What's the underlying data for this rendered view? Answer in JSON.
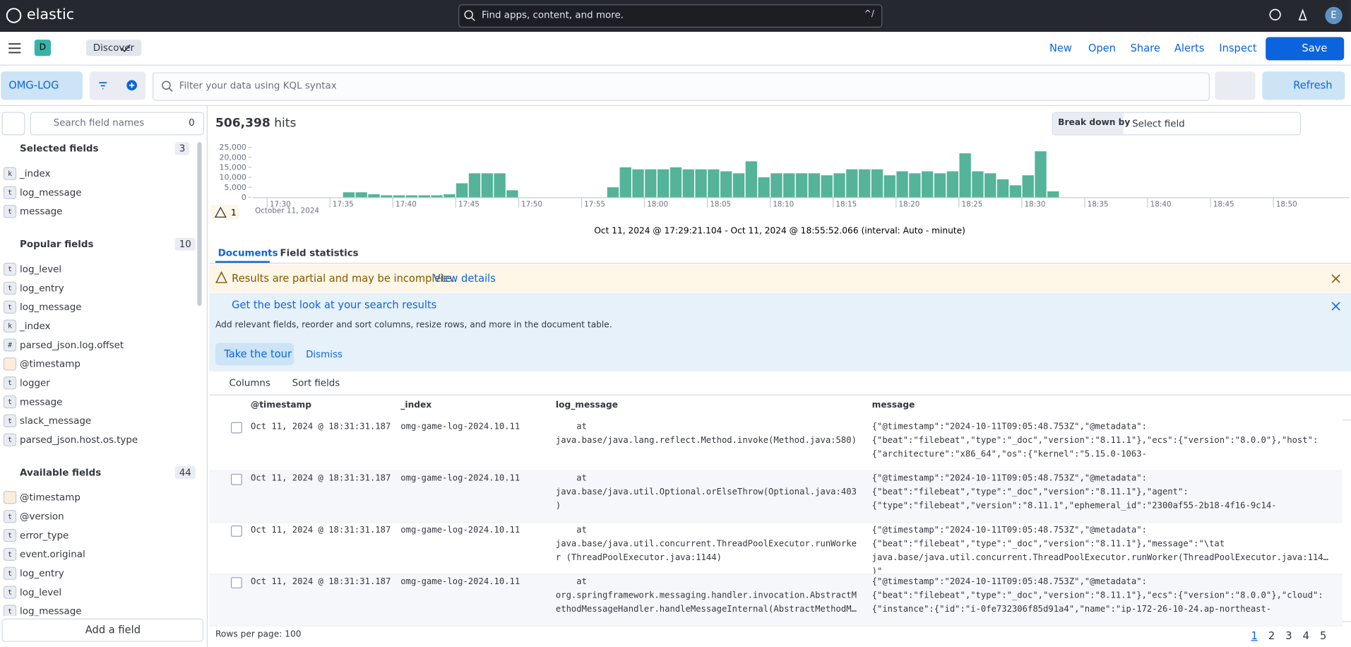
{
  "header": {
    "logo": "elastic",
    "search_placeholder": "Find apps, content, and more.",
    "shortcut": "^/",
    "avatar": "E"
  },
  "appbar": {
    "space": "D",
    "breadcrumb": "Discover",
    "actions": [
      "New",
      "Open",
      "Share",
      "Alerts",
      "Inspect"
    ],
    "save": "Save"
  },
  "querybar": {
    "data_view": "OMG-LOG",
    "placeholder": "Filter your data using KQL syntax",
    "refresh": "Refresh"
  },
  "sidebar": {
    "search_placeholder": "Search field names",
    "filter_count": 0,
    "groups": [
      {
        "title": "Selected fields",
        "count": 3,
        "fields": [
          {
            "badge": "k",
            "name": "_index"
          },
          {
            "badge": "t",
            "name": "log_message"
          },
          {
            "badge": "t",
            "name": "message"
          }
        ]
      },
      {
        "title": "Popular fields",
        "count": 10,
        "fields": [
          {
            "badge": "t",
            "name": "log_level"
          },
          {
            "badge": "t",
            "name": "log_entry"
          },
          {
            "badge": "t",
            "name": "log_message"
          },
          {
            "badge": "k",
            "name": "_index"
          },
          {
            "badge": "#",
            "name": "parsed_json.log.offset"
          },
          {
            "badge": null,
            "name": "@timestamp"
          },
          {
            "badge": "t",
            "name": "logger"
          },
          {
            "badge": "t",
            "name": "message"
          },
          {
            "badge": "t",
            "name": "slack_message"
          },
          {
            "badge": "t",
            "name": "parsed_json.host.os.type"
          }
        ]
      },
      {
        "title": "Available fields",
        "count": 44,
        "fields": [
          {
            "badge": null,
            "name": "@timestamp"
          },
          {
            "badge": "t",
            "name": "@version"
          },
          {
            "badge": "t",
            "name": "error_type"
          },
          {
            "badge": "t",
            "name": "event.original"
          },
          {
            "badge": "t",
            "name": "log_entry"
          },
          {
            "badge": "t",
            "name": "log_level"
          },
          {
            "badge": "t",
            "name": "log_message"
          }
        ]
      }
    ],
    "add_field": "Add a field"
  },
  "hits": {
    "count": "506,398",
    "label": "hits"
  },
  "breakdown": {
    "label": "Break down by",
    "placeholder": "Select field"
  },
  "chart_data": {
    "type": "bar",
    "date_label": "October 11, 2024",
    "warning_count": 1,
    "range_label": "Oct 11, 2024 @ 17:29:21.104 - Oct 11, 2024 @ 18:55:52.066 (interval: Auto - minute)",
    "x": [
      "17:36",
      "17:37",
      "17:38",
      "17:39",
      "17:40",
      "17:41",
      "17:42",
      "17:43",
      "17:44",
      "17:45",
      "17:46",
      "17:47",
      "17:48",
      "17:49",
      "17:57",
      "17:58",
      "17:59",
      "18:00",
      "18:01",
      "18:02",
      "18:03",
      "18:04",
      "18:05",
      "18:06",
      "18:07",
      "18:08",
      "18:09",
      "18:10",
      "18:11",
      "18:12",
      "18:13",
      "18:14",
      "18:15",
      "18:16",
      "18:17",
      "18:18",
      "18:19",
      "18:20",
      "18:21",
      "18:22",
      "18:23",
      "18:24",
      "18:25",
      "18:26",
      "18:27",
      "18:28",
      "18:29",
      "18:30",
      "18:31",
      "18:32"
    ],
    "values": [
      2500,
      2500,
      1500,
      1000,
      1000,
      1000,
      1000,
      1000,
      1500,
      7000,
      12000,
      12000,
      12000,
      3500,
      5000,
      15000,
      14000,
      14000,
      14000,
      15000,
      14000,
      14000,
      14000,
      13000,
      12000,
      18000,
      10000,
      12000,
      12000,
      12000,
      12000,
      11000,
      12000,
      14000,
      14000,
      14000,
      11000,
      13000,
      12000,
      13000,
      12000,
      13000,
      22000,
      13000,
      12000,
      9000,
      6000,
      11000,
      23000,
      3000
    ],
    "color": "#54b399",
    "xlim": [
      "17:29",
      "18:56"
    ],
    "xticks": [
      "17:30",
      "17:35",
      "17:40",
      "17:45",
      "17:50",
      "17:55",
      "18:00",
      "18:05",
      "18:10",
      "18:15",
      "18:20",
      "18:25",
      "18:30",
      "18:35",
      "18:40",
      "18:45",
      "18:50"
    ],
    "ylim": [
      0,
      25000
    ],
    "yticks": [
      0,
      {
        "value": 5000,
        "label": "5,000"
      },
      {
        "value": 10000,
        "label": "10,000"
      },
      {
        "value": 15000,
        "label": "15,000"
      },
      {
        "value": 20000,
        "label": "20,000"
      },
      {
        "value": 25000,
        "label": "25,000"
      }
    ]
  },
  "tabs": [
    "Documents",
    "Field statistics"
  ],
  "partial": {
    "text": "Results are partial and may be incomplete.",
    "link": "View details"
  },
  "callout": {
    "title": "Get the best look at your search results",
    "body": "Add relevant fields, reorder and sort columns, resize rows, and more in the document table.",
    "primary": "Take the tour",
    "secondary": "Dismiss"
  },
  "grid_toolbar": {
    "columns": "Columns",
    "sort": "Sort fields"
  },
  "table": {
    "columns": [
      "@timestamp",
      "_index",
      "log_message",
      "message"
    ],
    "rows": [
      [
        "Oct 11, 2024 @ 18:31:31.187",
        "omg-game-log-2024.10.11",
        "\tat java.base/java.lang.reflect.Method.invoke(Method.java:580)",
        "{\"@timestamp\":\"2024-10-11T09:05:48.753Z\",\"@metadata\": {\"beat\":\"filebeat\",\"type\":\"_doc\",\"version\":\"8.11.1\"},\"ecs\":{\"version\":\"8.0.0\"},\"host\": {\"architecture\":\"x86_64\",\"os\":{\"kernel\":\"5.15.0-1063-"
      ],
      [
        "Oct 11, 2024 @ 18:31:31.187",
        "omg-game-log-2024.10.11",
        "\tat java.base/java.util.Optional.orElseThrow(Optional.java:403)",
        "{\"@timestamp\":\"2024-10-11T09:05:48.753Z\",\"@metadata\": {\"beat\":\"filebeat\",\"type\":\"_doc\",\"version\":\"8.11.1\"},\"agent\": {\"type\":\"filebeat\",\"version\":\"8.11.1\",\"ephemeral_id\":\"2300af55-2b18-4f16-9c14-"
      ],
      [
        "Oct 11, 2024 @ 18:31:31.187",
        "omg-game-log-2024.10.11",
        "\tat java.base/java.util.concurrent.ThreadPoolExecutor.runWorker (ThreadPoolExecutor.java:1144)",
        "{\"@timestamp\":\"2024-10-11T09:05:48.753Z\",\"@metadata\": {\"beat\":\"filebeat\",\"type\":\"_doc\",\"version\":\"8.11.1\"},\"message\":\"\\tat java.base/java.util.concurrent.ThreadPoolExecutor.runWorker(ThreadPoolExecutor.java:1144)\""
      ],
      [
        "Oct 11, 2024 @ 18:31:31.187",
        "omg-game-log-2024.10.11",
        "\tat org.springframework.messaging.handler.invocation.AbstractMethodMessageHandler.handleMessageInternal(AbstractMethodMes",
        "{\"@timestamp\":\"2024-10-11T09:05:48.753Z\",\"@metadata\": {\"beat\":\"filebeat\",\"type\":\"_doc\",\"version\":\"8.11.1\"},\"ecs\":{\"version\":\"8.0.0\"},\"cloud\": {\"instance\":{\"id\":\"i-0fe732306f85d91a4\",\"name\":\"ip-172-26-10-24.ap-northeast-"
      ]
    ]
  },
  "footer": {
    "rows_per_page": "Rows per page: 100",
    "pages": [
      "1",
      "2",
      "3",
      "4",
      "5"
    ]
  }
}
